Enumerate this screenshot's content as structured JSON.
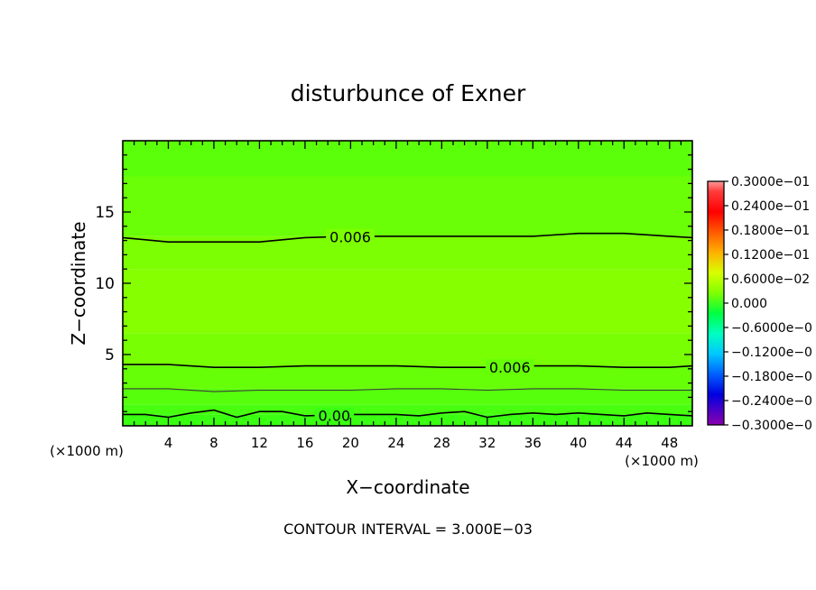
{
  "chart_data": {
    "type": "contour",
    "title": "disturbunce of Exner",
    "xlabel": "X−coordinate",
    "ylabel": "Z−coordinate",
    "x_unit": "(×1000 m)",
    "y_unit": "(×1000 m)",
    "xlim": [
      0,
      50
    ],
    "ylim": [
      0,
      20
    ],
    "x_ticks": [
      4,
      8,
      12,
      16,
      20,
      24,
      28,
      32,
      36,
      40,
      44,
      48
    ],
    "y_ticks": [
      5,
      10,
      15
    ],
    "contour_interval_text": "CONTOUR INTERVAL = 3.000E−03",
    "colorbar": {
      "labels": [
        "0.3000e−01",
        "0.2400e−01",
        "0.1800e−01",
        "0.1200e−01",
        "0.6000e−02",
        "0.000",
        "−0.6000e−0",
        "−0.1200e−0",
        "−0.1800e−0",
        "−0.2400e−0",
        "−0.3000e−0"
      ],
      "colors": [
        "#ff3b3b",
        "#ff0000",
        "#ff5a00",
        "#ffb000",
        "#d8ff00",
        "#80ff00",
        "#00ff40",
        "#00ffc0",
        "#00c8ff",
        "#0060ff",
        "#0000e0",
        "#6000c0"
      ],
      "top_color": "#ff9a9a",
      "bottom_color": "#8a00b0"
    },
    "fill_bands": [
      {
        "z": [
          0.0,
          0.8
        ],
        "color": "#3aff12"
      },
      {
        "z": [
          0.8,
          1.5
        ],
        "color": "#48ff10"
      },
      {
        "z": [
          1.5,
          2.6
        ],
        "color": "#56ff0c"
      },
      {
        "z": [
          2.6,
          4.2
        ],
        "color": "#66ff08"
      },
      {
        "z": [
          4.2,
          6.5
        ],
        "color": "#78ff04"
      },
      {
        "z": [
          6.5,
          11.0
        ],
        "color": "#86ff00"
      },
      {
        "z": [
          11.0,
          13.3
        ],
        "color": "#7cff02"
      },
      {
        "z": [
          13.3,
          17.5
        ],
        "color": "#6aff06"
      },
      {
        "z": [
          17.5,
          20.0
        ],
        "color": "#5cff0a"
      }
    ],
    "contours": [
      {
        "label": "0.006",
        "label_x": 18,
        "points": [
          [
            0,
            13.2
          ],
          [
            4,
            12.9
          ],
          [
            8,
            12.9
          ],
          [
            12,
            12.9
          ],
          [
            16,
            13.2
          ],
          [
            20,
            13.3
          ],
          [
            24,
            13.3
          ],
          [
            28,
            13.3
          ],
          [
            32,
            13.3
          ],
          [
            36,
            13.3
          ],
          [
            40,
            13.5
          ],
          [
            44,
            13.5
          ],
          [
            48,
            13.3
          ],
          [
            50,
            13.2
          ]
        ]
      },
      {
        "label": "0.006",
        "label_x": 32,
        "points": [
          [
            0,
            4.3
          ],
          [
            4,
            4.3
          ],
          [
            8,
            4.1
          ],
          [
            12,
            4.1
          ],
          [
            16,
            4.2
          ],
          [
            20,
            4.2
          ],
          [
            24,
            4.2
          ],
          [
            28,
            4.1
          ],
          [
            32,
            4.1
          ],
          [
            36,
            4.2
          ],
          [
            40,
            4.2
          ],
          [
            44,
            4.1
          ],
          [
            48,
            4.1
          ],
          [
            50,
            4.2
          ]
        ]
      },
      {
        "label": "",
        "label_x": null,
        "points": [
          [
            0,
            2.6
          ],
          [
            4,
            2.6
          ],
          [
            8,
            2.4
          ],
          [
            12,
            2.5
          ],
          [
            16,
            2.5
          ],
          [
            20,
            2.5
          ],
          [
            24,
            2.6
          ],
          [
            28,
            2.6
          ],
          [
            32,
            2.5
          ],
          [
            36,
            2.6
          ],
          [
            40,
            2.6
          ],
          [
            44,
            2.5
          ],
          [
            48,
            2.5
          ],
          [
            50,
            2.5
          ]
        ]
      },
      {
        "label": "0.00",
        "label_x": 17,
        "points": [
          [
            0,
            0.8
          ],
          [
            2,
            0.8
          ],
          [
            4,
            0.6
          ],
          [
            6,
            0.9
          ],
          [
            8,
            1.1
          ],
          [
            10,
            0.6
          ],
          [
            12,
            1.0
          ],
          [
            14,
            1.0
          ],
          [
            16,
            0.7
          ],
          [
            20,
            0.8
          ],
          [
            24,
            0.8
          ],
          [
            26,
            0.7
          ],
          [
            28,
            0.9
          ],
          [
            30,
            1.0
          ],
          [
            32,
            0.6
          ],
          [
            34,
            0.8
          ],
          [
            36,
            0.9
          ],
          [
            38,
            0.8
          ],
          [
            40,
            0.9
          ],
          [
            42,
            0.8
          ],
          [
            44,
            0.7
          ],
          [
            46,
            0.9
          ],
          [
            48,
            0.8
          ],
          [
            50,
            0.7
          ]
        ]
      }
    ]
  }
}
